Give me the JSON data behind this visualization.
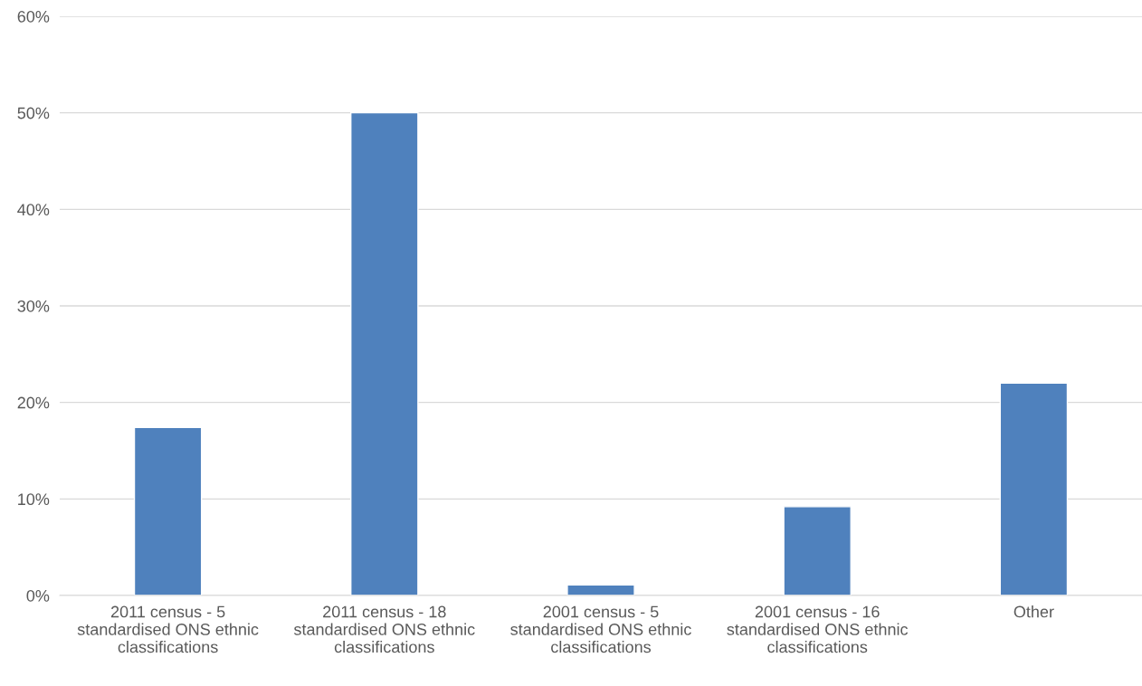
{
  "chart_data": {
    "type": "bar",
    "categories": [
      "2011 census - 5 standardised ONS ethnic classifications",
      "2011 census - 18 standardised ONS ethnic classifications",
      "2001 census - 5 standardised ONS ethnic classifications",
      "2001 census - 16 standardised ONS ethnic classifications",
      "Other"
    ],
    "values": [
      17.4,
      50.0,
      1.1,
      9.2,
      22.0
    ],
    "color": "#4f81bd",
    "ylim": [
      0,
      60
    ],
    "yticks": [
      {
        "value": 0,
        "label": "0%"
      },
      {
        "value": 10,
        "label": "10%"
      },
      {
        "value": 20,
        "label": "20%"
      },
      {
        "value": 30,
        "label": "30%"
      },
      {
        "value": 40,
        "label": "40%"
      },
      {
        "value": 50,
        "label": "50%"
      },
      {
        "value": 60,
        "label": "60%"
      }
    ],
    "grid": "y",
    "legend": false
  }
}
